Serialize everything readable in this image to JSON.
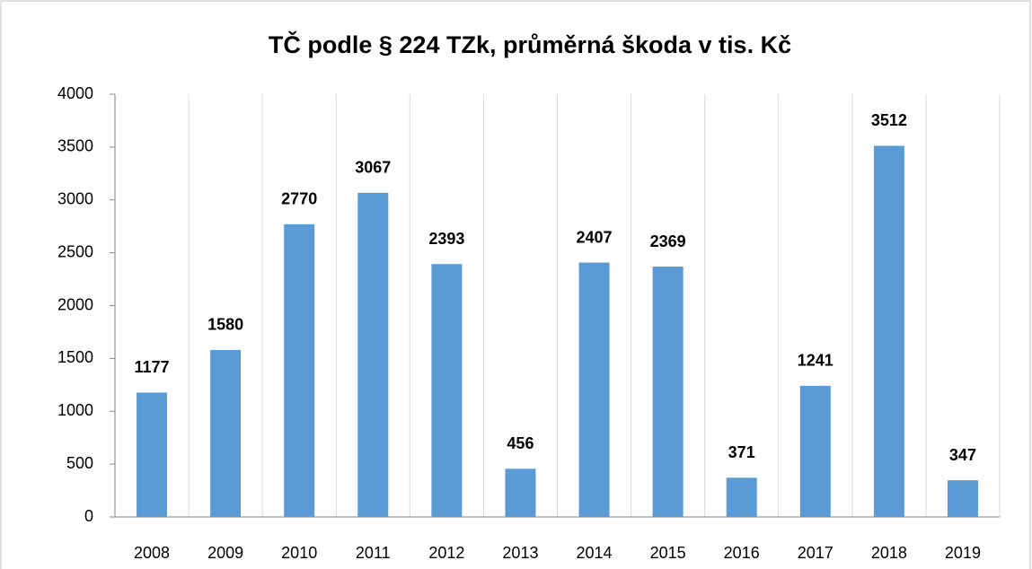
{
  "chart_data": {
    "type": "bar",
    "title": "TČ podle § 224 TZk, průměrná škoda v tis. Kč",
    "categories": [
      "2008",
      "2009",
      "2010",
      "2011",
      "2012",
      "2013",
      "2014",
      "2015",
      "2016",
      "2017",
      "2018",
      "2019"
    ],
    "values": [
      1177,
      1580,
      2770,
      3067,
      2393,
      456,
      2407,
      2369,
      371,
      1241,
      3512,
      347
    ],
    "color": "#5b9bd5",
    "ylim": [
      0,
      4000
    ],
    "yticks": [
      0,
      500,
      1000,
      1500,
      2000,
      2500,
      3000,
      3500,
      4000
    ]
  }
}
